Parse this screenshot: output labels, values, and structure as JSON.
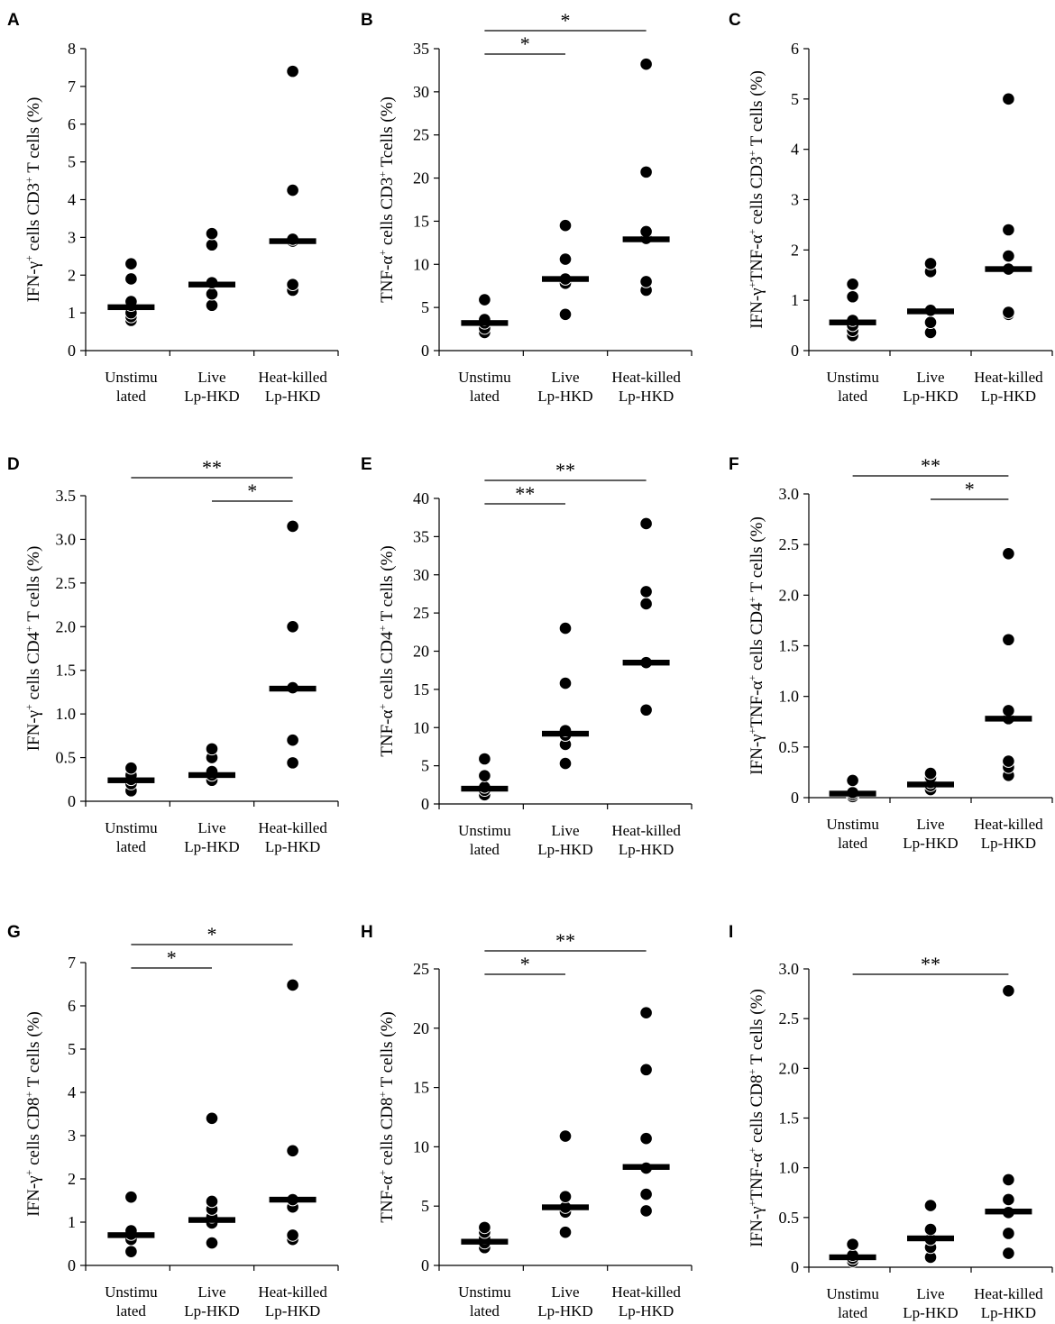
{
  "figure": {
    "category_labels": [
      [
        "Unstimu",
        "lated"
      ],
      [
        "Live",
        "Lp-HKD"
      ],
      [
        "Heat-killed",
        "Lp-HKD"
      ]
    ]
  },
  "chart_data": [
    {
      "panel": "A",
      "type": "scatter",
      "ylabel": [
        {
          "t": "IFN-γ"
        },
        {
          "t": "+",
          "sup": true
        },
        {
          "t": " cells CD3"
        },
        {
          "t": "+",
          "sup": true
        },
        {
          "t": " T cells (%)"
        }
      ],
      "ylim": [
        0,
        8
      ],
      "yticks": [
        "0",
        "1",
        "2",
        "3",
        "4",
        "5",
        "6",
        "7",
        "8"
      ],
      "categories": [
        "Unstimulated",
        "Live Lp-HKD",
        "Heat-killed Lp-HKD"
      ],
      "points": [
        [
          0.8,
          0.9,
          1.0,
          1.2,
          1.3,
          1.9,
          2.3
        ],
        [
          1.2,
          1.5,
          1.8,
          2.8,
          3.1
        ],
        [
          1.6,
          1.75,
          2.9,
          2.95,
          4.25,
          7.4
        ]
      ],
      "medians": [
        1.15,
        1.75,
        2.9
      ],
      "significance": []
    },
    {
      "panel": "B",
      "type": "scatter",
      "ylabel": [
        {
          "t": "TNF-α"
        },
        {
          "t": "+",
          "sup": true
        },
        {
          "t": " cells CD3"
        },
        {
          "t": "+",
          "sup": true
        },
        {
          "t": " Tcells (%)"
        }
      ],
      "ylim": [
        0,
        35
      ],
      "yticks": [
        "0",
        "5",
        "10",
        "15",
        "20",
        "25",
        "30",
        "35"
      ],
      "categories": [
        "Unstimulated",
        "Live Lp-HKD",
        "Heat-killed Lp-HKD"
      ],
      "points": [
        [
          2.1,
          2.6,
          3.2,
          3.6,
          5.9
        ],
        [
          4.2,
          7.8,
          8.3,
          10.6,
          14.5
        ],
        [
          7.0,
          8.0,
          13.0,
          13.8,
          20.7,
          33.2
        ]
      ],
      "medians": [
        3.2,
        8.3,
        12.9
      ],
      "significance": [
        {
          "from": 0,
          "to": 1,
          "label": "*",
          "level": 0
        },
        {
          "from": 0,
          "to": 2,
          "label": "*",
          "level": 1
        }
      ]
    },
    {
      "panel": "C",
      "type": "scatter",
      "ylabel": [
        {
          "t": "IFN-γ"
        },
        {
          "t": "+",
          "sup": true
        },
        {
          "t": "TNF-α"
        },
        {
          "t": "+",
          "sup": true
        },
        {
          "t": " cells CD3"
        },
        {
          "t": "+",
          "sup": true
        },
        {
          "t": " T cells (%)"
        }
      ],
      "ylim": [
        0,
        6
      ],
      "yticks": [
        "0",
        "1",
        "2",
        "3",
        "4",
        "5",
        "6"
      ],
      "categories": [
        "Unstimulated",
        "Live Lp-HKD",
        "Heat-killed Lp-HKD"
      ],
      "points": [
        [
          0.3,
          0.4,
          0.5,
          0.6,
          1.07,
          1.32
        ],
        [
          0.36,
          0.56,
          0.8,
          1.57,
          1.73
        ],
        [
          0.72,
          0.76,
          1.62,
          1.88,
          2.4,
          5.0
        ]
      ],
      "medians": [
        0.56,
        0.78,
        1.62
      ],
      "significance": []
    },
    {
      "panel": "D",
      "type": "scatter",
      "ylabel": [
        {
          "t": "IFN-γ"
        },
        {
          "t": "+",
          "sup": true
        },
        {
          "t": " cells CD4"
        },
        {
          "t": "+",
          "sup": true
        },
        {
          "t": " T cells (%)"
        }
      ],
      "ylim": [
        0,
        3.5
      ],
      "yticks": [
        "0",
        "0.5",
        "1.0",
        "1.5",
        "2.0",
        "2.5",
        "3.0",
        "3.5"
      ],
      "categories": [
        "Unstimulated",
        "Live Lp-HKD",
        "Heat-killed Lp-HKD"
      ],
      "points": [
        [
          0.12,
          0.2,
          0.25,
          0.3,
          0.38
        ],
        [
          0.24,
          0.3,
          0.34,
          0.5,
          0.6
        ],
        [
          0.44,
          0.7,
          1.3,
          2.0,
          3.15
        ]
      ],
      "medians": [
        0.24,
        0.3,
        1.29
      ],
      "significance": [
        {
          "from": 1,
          "to": 2,
          "label": "*",
          "level": 0
        },
        {
          "from": 0,
          "to": 2,
          "label": "**",
          "level": 1
        }
      ]
    },
    {
      "panel": "E",
      "type": "scatter",
      "ylabel": [
        {
          "t": "TNF-α"
        },
        {
          "t": "+",
          "sup": true
        },
        {
          "t": " cells CD4"
        },
        {
          "t": "+",
          "sup": true
        },
        {
          "t": " T cells (%)"
        }
      ],
      "ylim": [
        0,
        40
      ],
      "yticks": [
        "0",
        "5",
        "10",
        "15",
        "20",
        "25",
        "30",
        "35",
        "40"
      ],
      "categories": [
        "Unstimulated",
        "Live Lp-HKD",
        "Heat-killed Lp-HKD"
      ],
      "points": [
        [
          1.2,
          1.8,
          2.2,
          3.7,
          5.9
        ],
        [
          5.3,
          7.8,
          9.0,
          9.6,
          15.8,
          23.0
        ],
        [
          12.3,
          18.5,
          26.2,
          27.8,
          36.7
        ]
      ],
      "medians": [
        2.0,
        9.2,
        18.5
      ],
      "significance": [
        {
          "from": 0,
          "to": 1,
          "label": "**",
          "level": 0
        },
        {
          "from": 0,
          "to": 2,
          "label": "**",
          "level": 1
        }
      ]
    },
    {
      "panel": "F",
      "type": "scatter",
      "ylabel": [
        {
          "t": "IFN-γ"
        },
        {
          "t": "+",
          "sup": true
        },
        {
          "t": "TNF-α"
        },
        {
          "t": "+",
          "sup": true
        },
        {
          "t": " cells CD4"
        },
        {
          "t": "+",
          "sup": true
        },
        {
          "t": " T cells (%)"
        }
      ],
      "ylim": [
        0,
        3.0
      ],
      "yticks": [
        "0",
        "0.5",
        "1.0",
        "1.5",
        "2.0",
        "2.5",
        "3.0"
      ],
      "categories": [
        "Unstimulated",
        "Live Lp-HKD",
        "Heat-killed Lp-HKD"
      ],
      "points": [
        [
          0.01,
          0.03,
          0.05,
          0.17
        ],
        [
          0.08,
          0.12,
          0.15,
          0.2,
          0.24
        ],
        [
          0.22,
          0.3,
          0.36,
          0.78,
          0.86,
          1.56,
          2.41
        ]
      ],
      "medians": [
        0.04,
        0.13,
        0.78
      ],
      "significance": [
        {
          "from": 1,
          "to": 2,
          "label": "*",
          "level": 0
        },
        {
          "from": 0,
          "to": 2,
          "label": "**",
          "level": 1
        }
      ]
    },
    {
      "panel": "G",
      "type": "scatter",
      "ylabel": [
        {
          "t": "IFN-γ"
        },
        {
          "t": "+",
          "sup": true
        },
        {
          "t": " cells CD8"
        },
        {
          "t": "+",
          "sup": true
        },
        {
          "t": " T cells (%)"
        }
      ],
      "ylim": [
        0,
        7
      ],
      "yticks": [
        "0",
        "1",
        "2",
        "3",
        "4",
        "5",
        "6",
        "7"
      ],
      "categories": [
        "Unstimulated",
        "Live Lp-HKD",
        "Heat-killed Lp-HKD"
      ],
      "points": [
        [
          0.32,
          0.6,
          0.72,
          0.8,
          1.58
        ],
        [
          0.52,
          0.98,
          1.12,
          1.3,
          1.48,
          3.4
        ],
        [
          0.6,
          0.7,
          1.35,
          1.52,
          2.65,
          6.48
        ]
      ],
      "medians": [
        0.7,
        1.05,
        1.52
      ],
      "significance": [
        {
          "from": 0,
          "to": 1,
          "label": "*",
          "level": 0
        },
        {
          "from": 0,
          "to": 2,
          "label": "*",
          "level": 1
        }
      ]
    },
    {
      "panel": "H",
      "type": "scatter",
      "ylabel": [
        {
          "t": "TNF-α"
        },
        {
          "t": "+",
          "sup": true
        },
        {
          "t": " cells CD8"
        },
        {
          "t": "+",
          "sup": true
        },
        {
          "t": " T cells (%)"
        }
      ],
      "ylim": [
        0,
        25
      ],
      "yticks": [
        "0",
        "5",
        "10",
        "15",
        "20",
        "25"
      ],
      "categories": [
        "Unstimulated",
        "Live Lp-HKD",
        "Heat-killed Lp-HKD"
      ],
      "points": [
        [
          1.5,
          1.9,
          2.3,
          2.8,
          3.2
        ],
        [
          2.8,
          4.5,
          4.9,
          5.8,
          10.9
        ],
        [
          4.6,
          6.0,
          8.2,
          10.7,
          16.5,
          21.3
        ]
      ],
      "medians": [
        2.0,
        4.9,
        8.3
      ],
      "significance": [
        {
          "from": 0,
          "to": 1,
          "label": "*",
          "level": 0
        },
        {
          "from": 0,
          "to": 2,
          "label": "**",
          "level": 1
        }
      ]
    },
    {
      "panel": "I",
      "type": "scatter",
      "ylabel": [
        {
          "t": "IFN-γ"
        },
        {
          "t": "+",
          "sup": true
        },
        {
          "t": "TNF-α"
        },
        {
          "t": "+",
          "sup": true
        },
        {
          "t": " cells CD8"
        },
        {
          "t": "+",
          "sup": true
        },
        {
          "t": " T cells (%)"
        }
      ],
      "ylim": [
        0,
        3.0
      ],
      "yticks": [
        "0",
        "0.5",
        "1.0",
        "1.5",
        "2.0",
        "2.5",
        "3.0"
      ],
      "categories": [
        "Unstimulated",
        "Live Lp-HKD",
        "Heat-killed Lp-HKD"
      ],
      "points": [
        [
          0.06,
          0.09,
          0.12,
          0.23
        ],
        [
          0.1,
          0.2,
          0.28,
          0.38,
          0.62
        ],
        [
          0.14,
          0.34,
          0.55,
          0.68,
          0.88,
          2.78
        ]
      ],
      "medians": [
        0.1,
        0.29,
        0.56
      ],
      "significance": [
        {
          "from": 0,
          "to": 2,
          "label": "**",
          "level": 0
        }
      ]
    }
  ]
}
